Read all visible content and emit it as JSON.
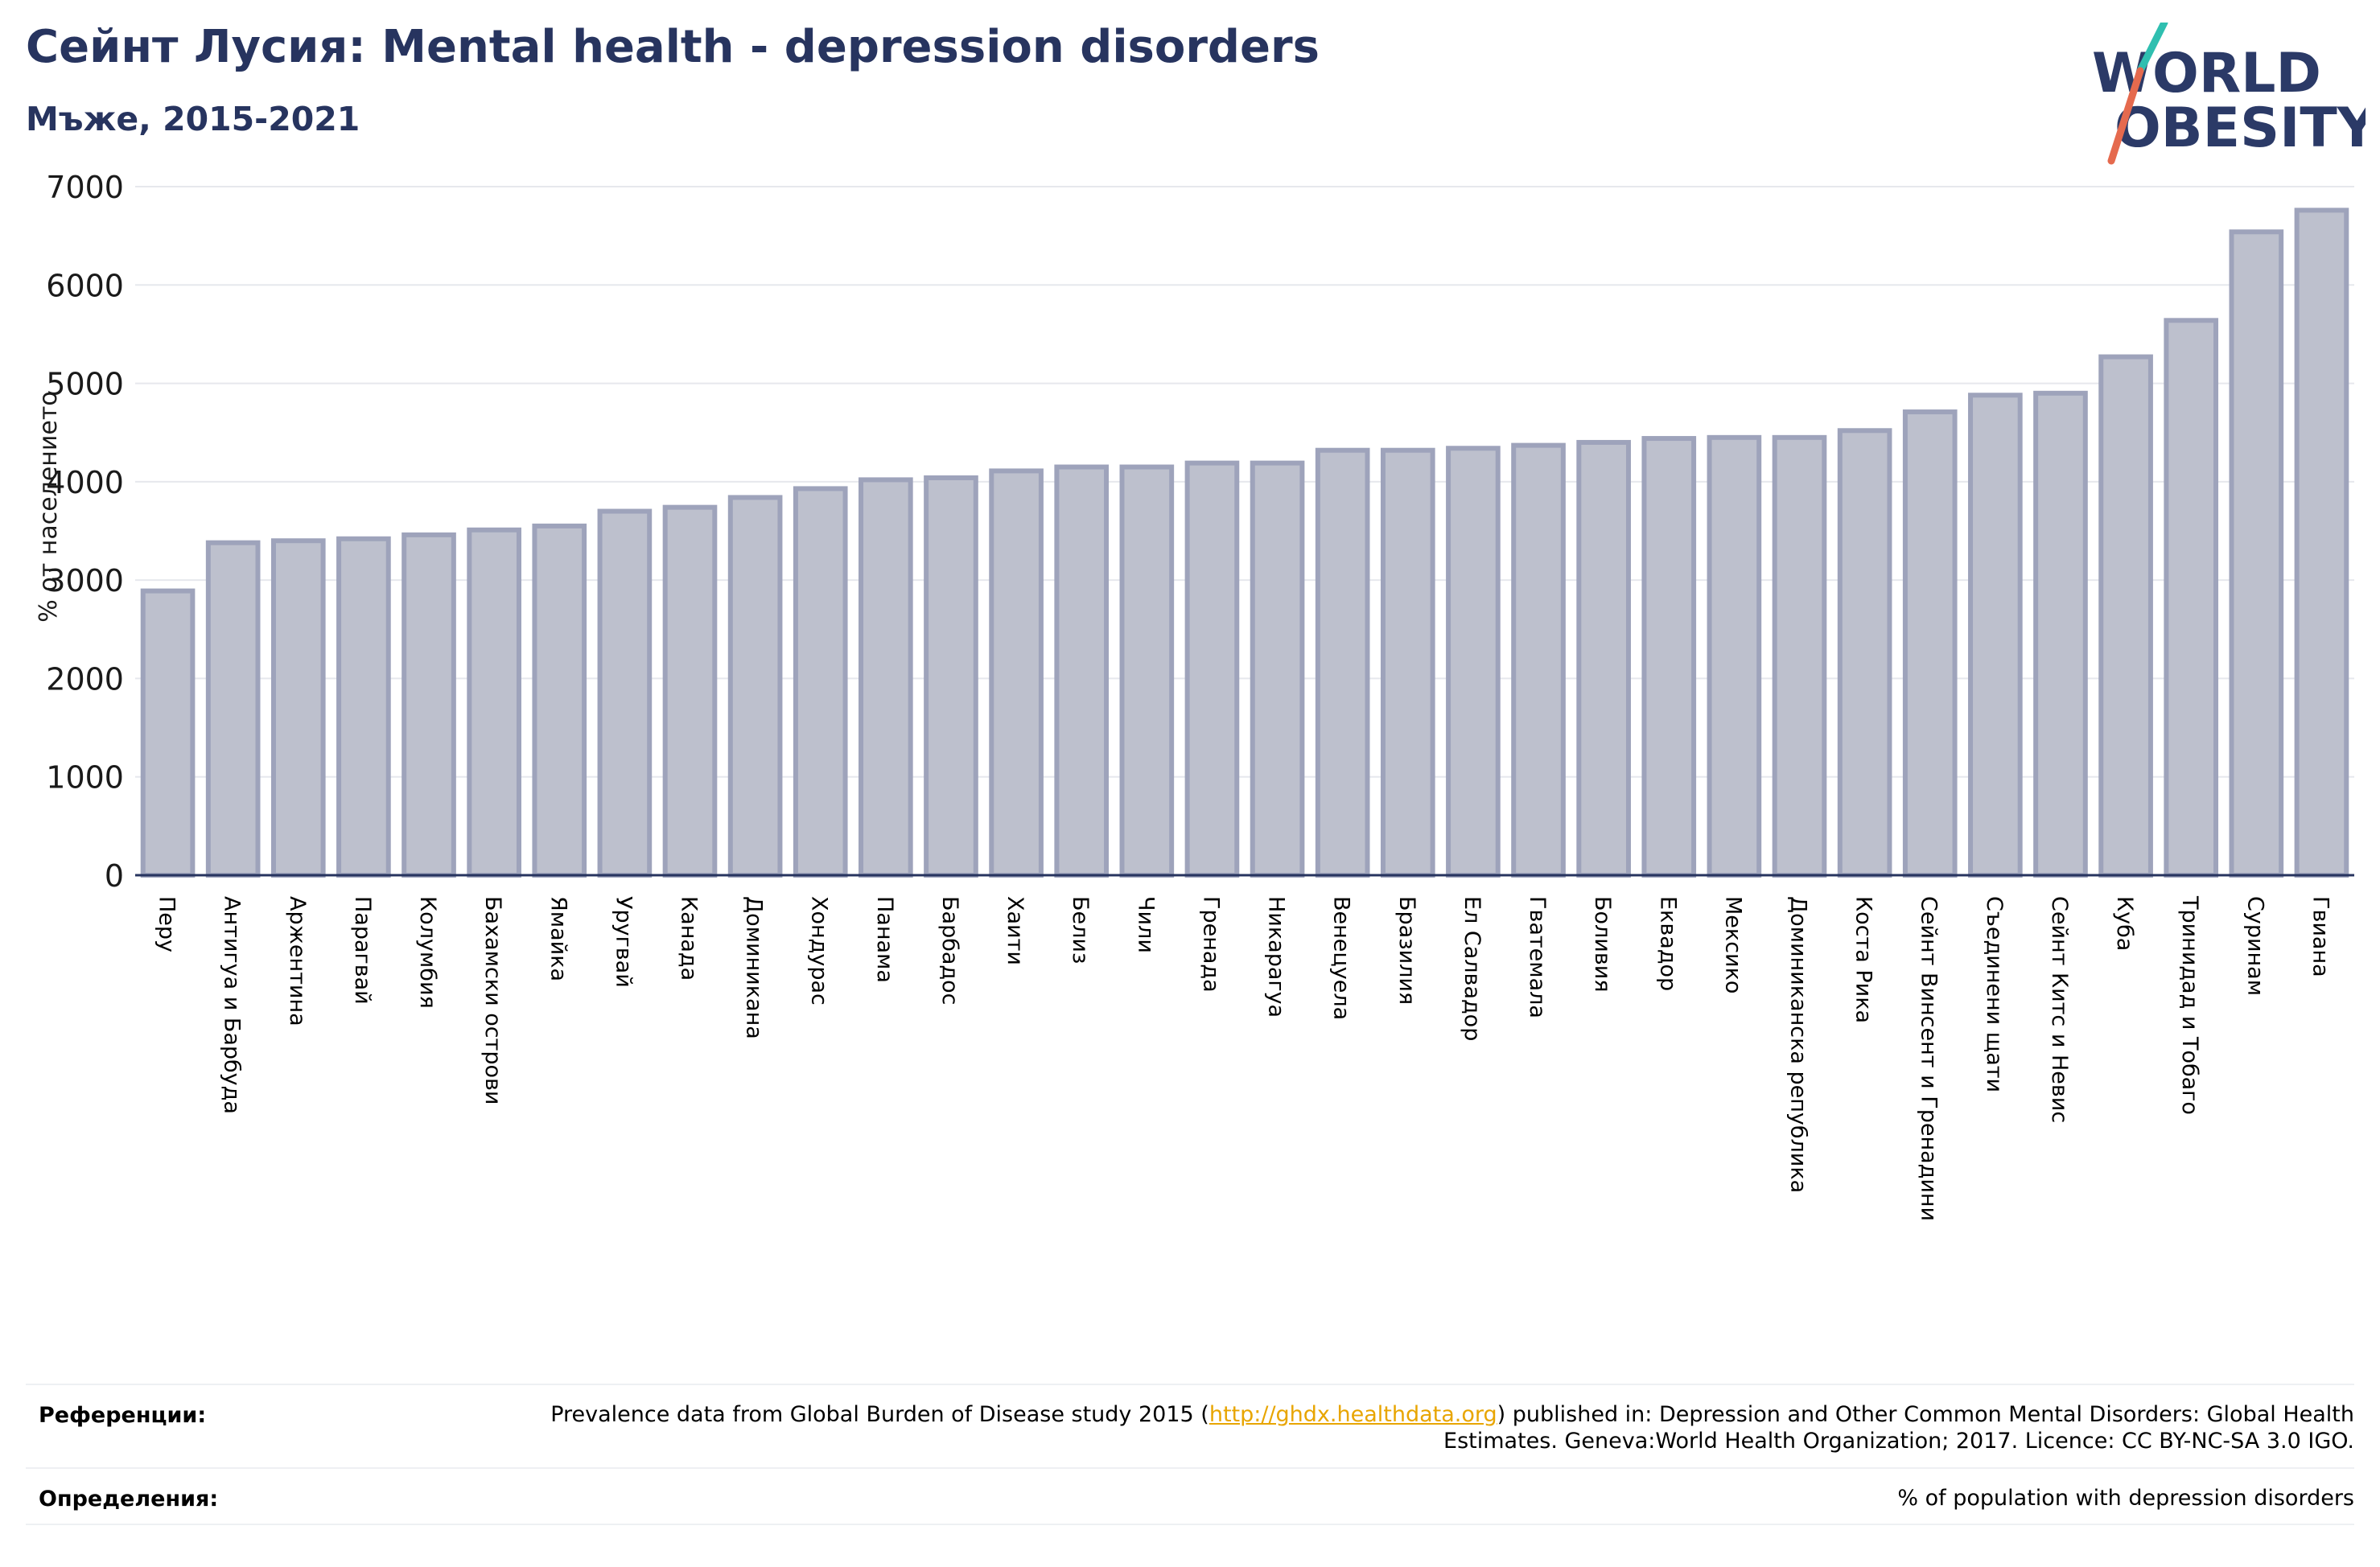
{
  "title": "Сейнт Лусия: Mental health - depression disorders",
  "subtitle": "Мъже, 2015-2021",
  "logo": {
    "line1": "WORLD",
    "line2": "OBESITY"
  },
  "colors": {
    "title": "#27345f",
    "bar_fill": "#bdc0cd",
    "bar_stroke": "#9ea3bb",
    "grid": "#e6e8ed",
    "axis": "#27345f",
    "link": "#e8a500"
  },
  "references": {
    "label": "Референции:",
    "text_before_link": "Prevalence data from Global Burden of Disease study 2015 (",
    "link_text": "http://ghdx.healthdata.org",
    "text_after_link": ") published in: Depression and Other Common Mental Disorders: Global Health Estimates. Geneva:World Health Organization; 2017. Licence: CC BY-NC-SA 3.0 IGO."
  },
  "definitions": {
    "label": "Определения:",
    "text": "% of population with depression disorders"
  },
  "chart_data": {
    "type": "bar",
    "ylabel": "% от населението",
    "ylim": [
      0,
      7000
    ],
    "yticks": [
      0,
      1000,
      2000,
      3000,
      4000,
      5000,
      6000,
      7000
    ],
    "grid": true,
    "categories": [
      "Перу",
      "Антигуа и Барбуда",
      "Аржентина",
      "Парагвай",
      "Колумбия",
      "Бахамски острови",
      "Ямайка",
      "Уругвай",
      "Канада",
      "Доминикана",
      "Хондурас",
      "Панама",
      "Барбадос",
      "Хаити",
      "Белиз",
      "Чили",
      "Гренада",
      "Никарагуа",
      "Венецуела",
      "Бразилия",
      "Ел Салвадор",
      "Гватемала",
      "Боливия",
      "Еквадор",
      "Мексико",
      "Доминиканска република",
      "Коста Рика",
      "Сейнт Винсент и Гренадини",
      "Съединени щати",
      "Сейнт Китс и Невис",
      "Куба",
      "Тринидад и Тобаго",
      "Суринам",
      "Гвиана"
    ],
    "values": [
      2890,
      3380,
      3400,
      3420,
      3460,
      3510,
      3550,
      3700,
      3740,
      3840,
      3930,
      4020,
      4040,
      4110,
      4150,
      4150,
      4190,
      4190,
      4320,
      4320,
      4340,
      4370,
      4400,
      4440,
      4450,
      4450,
      4520,
      4710,
      4880,
      4900,
      5270,
      5640,
      6540,
      6760
    ]
  }
}
